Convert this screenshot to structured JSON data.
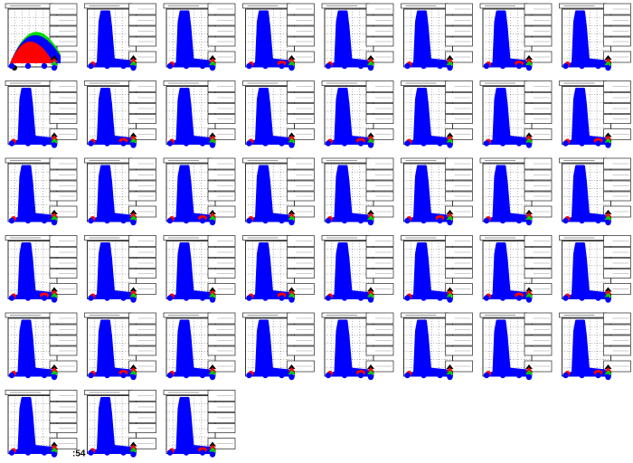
{
  "footer": {
    "text": ":54"
  }
}
